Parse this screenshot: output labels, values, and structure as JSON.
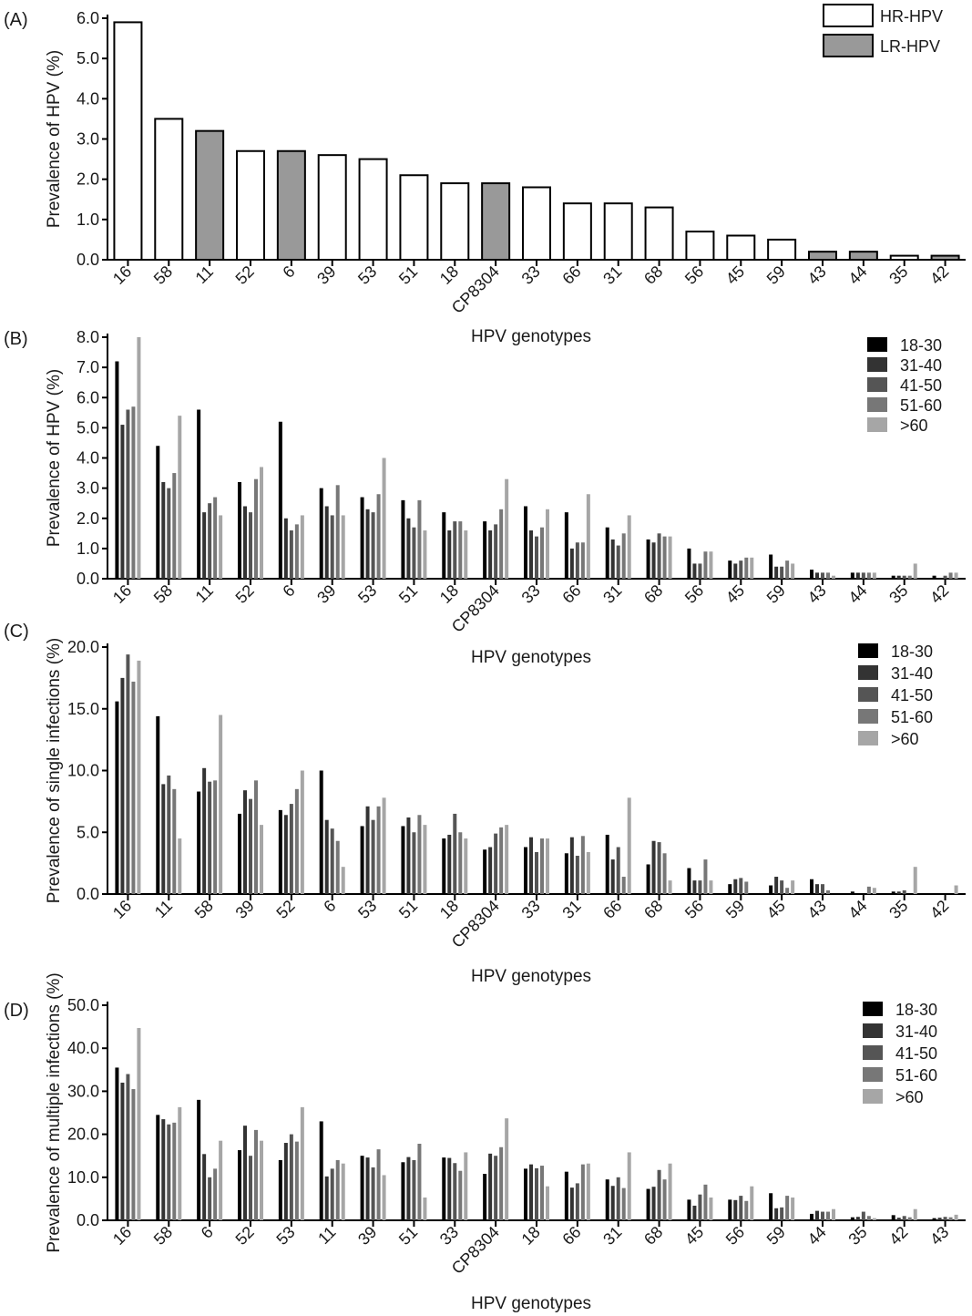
{
  "chart_data": [
    {
      "panel": "(A)",
      "type": "bar",
      "ylabel": "Prevalence of HPV (%)",
      "xlabel": "HPV genotypes",
      "ylim": [
        0,
        6
      ],
      "yticks": [
        "0.0",
        "1.0",
        "2.0",
        "3.0",
        "4.0",
        "5.0",
        "6.0"
      ],
      "categories": [
        "16",
        "58",
        "11",
        "52",
        "6",
        "39",
        "53",
        "51",
        "18",
        "CP8304",
        "33",
        "66",
        "31",
        "68",
        "56",
        "45",
        "59",
        "43",
        "44",
        "35",
        "42"
      ],
      "values": [
        5.9,
        3.5,
        3.2,
        2.7,
        2.7,
        2.6,
        2.5,
        2.1,
        1.9,
        1.9,
        1.8,
        1.4,
        1.4,
        1.3,
        0.7,
        0.6,
        0.5,
        0.2,
        0.2,
        0.1,
        0.1
      ],
      "risk": [
        "HR",
        "HR",
        "LR",
        "HR",
        "LR",
        "HR",
        "HR",
        "HR",
        "HR",
        "LR",
        "HR",
        "HR",
        "HR",
        "HR",
        "HR",
        "HR",
        "HR",
        "LR",
        "LR",
        "HR",
        "LR"
      ],
      "legend": [
        {
          "name": "HR-HPV",
          "color": "#ffffff"
        },
        {
          "name": "LR-HPV",
          "color": "#999999"
        }
      ]
    },
    {
      "panel": "(B)",
      "type": "bar",
      "ylabel": "Prevalence of HPV  (%)",
      "xlabel": "HPV genotypes",
      "ylim": [
        0,
        8
      ],
      "yticks": [
        "0.0",
        "1.0",
        "2.0",
        "3.0",
        "4.0",
        "5.0",
        "6.0",
        "7.0",
        "8.0"
      ],
      "categories": [
        "16",
        "58",
        "11",
        "52",
        "6",
        "39",
        "53",
        "51",
        "18",
        "CP8304",
        "33",
        "66",
        "31",
        "68",
        "56",
        "45",
        "59",
        "43",
        "44",
        "35",
        "42"
      ],
      "series": [
        {
          "name": "18-30",
          "color": "#000000",
          "values": [
            7.2,
            4.4,
            5.6,
            3.2,
            5.2,
            3.0,
            2.7,
            2.6,
            2.2,
            1.9,
            2.4,
            2.2,
            1.7,
            1.3,
            1.0,
            0.6,
            0.8,
            0.3,
            0.2,
            0.1,
            0.1
          ]
        },
        {
          "name": "31-40",
          "color": "#333333",
          "values": [
            5.1,
            3.2,
            2.2,
            2.4,
            2.0,
            2.4,
            2.3,
            2.0,
            1.6,
            1.6,
            1.6,
            1.0,
            1.3,
            1.2,
            0.5,
            0.5,
            0.4,
            0.2,
            0.2,
            0.1,
            0.0
          ]
        },
        {
          "name": "41-50",
          "color": "#555555",
          "values": [
            5.6,
            3.0,
            2.5,
            2.2,
            1.6,
            2.1,
            2.2,
            1.7,
            1.9,
            1.8,
            1.4,
            1.2,
            1.1,
            1.5,
            0.5,
            0.6,
            0.4,
            0.2,
            0.2,
            0.1,
            0.1
          ]
        },
        {
          "name": "51-60",
          "color": "#777777",
          "values": [
            5.7,
            3.5,
            2.7,
            3.3,
            1.8,
            3.1,
            2.8,
            2.6,
            1.9,
            2.3,
            1.7,
            1.2,
            1.5,
            1.4,
            0.9,
            0.7,
            0.6,
            0.2,
            0.2,
            0.1,
            0.2
          ]
        },
        {
          "name": ">60",
          "color": "#a6a6a6",
          "values": [
            8.0,
            5.4,
            2.1,
            3.7,
            2.1,
            2.1,
            4.0,
            1.6,
            1.6,
            3.3,
            2.3,
            2.8,
            2.1,
            1.4,
            0.9,
            0.7,
            0.5,
            0.1,
            0.2,
            0.5,
            0.2
          ]
        }
      ]
    },
    {
      "panel": "(C)",
      "type": "bar",
      "ylabel": "Prevalence of single infections (%)",
      "xlabel": "HPV genotypes",
      "ylim": [
        0,
        20
      ],
      "yticks": [
        "0.0",
        "5.0",
        "10.0",
        "15.0",
        "20.0"
      ],
      "categories": [
        "16",
        "11",
        "58",
        "39",
        "52",
        "6",
        "53",
        "51",
        "18",
        "CP8304",
        "33",
        "31",
        "66",
        "68",
        "56",
        "59",
        "45",
        "43",
        "44",
        "35",
        "42"
      ],
      "series": [
        {
          "name": "18-30",
          "color": "#000000",
          "values": [
            15.6,
            14.4,
            8.3,
            6.5,
            6.8,
            10.0,
            5.5,
            5.5,
            4.5,
            3.6,
            3.8,
            3.3,
            4.8,
            2.4,
            2.1,
            0.8,
            0.7,
            1.2,
            0.2,
            0.2,
            0.0
          ]
        },
        {
          "name": "31-40",
          "color": "#333333",
          "values": [
            17.5,
            8.9,
            10.2,
            8.4,
            6.4,
            6.0,
            7.1,
            6.2,
            4.8,
            3.8,
            4.6,
            4.6,
            2.8,
            4.3,
            1.1,
            1.2,
            1.4,
            0.8,
            0.0,
            0.2,
            0.0
          ]
        },
        {
          "name": "41-50",
          "color": "#555555",
          "values": [
            19.4,
            9.6,
            9.1,
            7.7,
            7.3,
            5.3,
            6.0,
            5.0,
            6.5,
            4.9,
            3.4,
            3.1,
            3.8,
            4.2,
            1.1,
            1.3,
            1.1,
            0.8,
            0.0,
            0.3,
            0.0
          ]
        },
        {
          "name": "51-60",
          "color": "#777777",
          "values": [
            17.2,
            8.5,
            9.2,
            9.2,
            8.5,
            4.3,
            7.1,
            6.4,
            5.0,
            5.4,
            4.5,
            4.7,
            1.4,
            3.3,
            2.8,
            1.0,
            0.5,
            0.3,
            0.6,
            0.0,
            0.0
          ]
        },
        {
          "name": ">60",
          "color": "#a6a6a6",
          "values": [
            18.9,
            4.5,
            14.5,
            5.6,
            10.0,
            2.2,
            7.8,
            5.6,
            4.5,
            5.6,
            4.5,
            3.4,
            7.8,
            1.1,
            1.1,
            0.0,
            1.1,
            0.0,
            0.5,
            2.2,
            0.7
          ]
        }
      ]
    },
    {
      "panel": "(D)",
      "type": "bar",
      "ylabel": "Prevalence of multiple infections (%)",
      "xlabel": "HPV genotypes",
      "ylim": [
        0,
        50
      ],
      "yticks": [
        "0.0",
        "10.0",
        "20.0",
        "30.0",
        "40.0",
        "50.0"
      ],
      "categories": [
        "16",
        "58",
        "6",
        "52",
        "53",
        "11",
        "39",
        "51",
        "33",
        "CP8304",
        "18",
        "66",
        "31",
        "68",
        "45",
        "56",
        "59",
        "44",
        "35",
        "42",
        "43"
      ],
      "series": [
        {
          "name": "18-30",
          "color": "#000000",
          "values": [
            35.5,
            24.5,
            28.0,
            16.3,
            14.0,
            23.0,
            15.0,
            13.5,
            14.6,
            10.8,
            12.0,
            11.3,
            9.5,
            7.3,
            4.8,
            4.8,
            6.3,
            1.5,
            0.7,
            1.2,
            0.5
          ]
        },
        {
          "name": "31-40",
          "color": "#333333",
          "values": [
            32.0,
            23.5,
            15.4,
            22.0,
            18.0,
            10.2,
            14.6,
            14.7,
            14.5,
            15.5,
            13.0,
            7.6,
            8.0,
            7.8,
            3.4,
            4.7,
            2.8,
            2.2,
            0.8,
            0.6,
            0.6
          ]
        },
        {
          "name": "41-50",
          "color": "#555555",
          "values": [
            34.0,
            22.3,
            10.0,
            15.0,
            20.0,
            12.0,
            12.3,
            14.0,
            13.3,
            15.0,
            12.1,
            8.6,
            10.0,
            11.7,
            6.0,
            5.7,
            3.0,
            2.0,
            2.0,
            1.0,
            0.8
          ]
        },
        {
          "name": "51-60",
          "color": "#777777",
          "values": [
            30.5,
            22.7,
            12.0,
            21.0,
            18.3,
            14.0,
            16.5,
            17.8,
            11.5,
            17.0,
            12.7,
            13.0,
            7.5,
            9.5,
            8.3,
            4.5,
            5.7,
            2.0,
            1.0,
            0.7,
            0.7
          ]
        },
        {
          "name": ">60",
          "color": "#a6a6a6",
          "values": [
            44.7,
            26.3,
            18.5,
            18.5,
            26.3,
            13.2,
            10.5,
            5.3,
            15.8,
            23.7,
            7.9,
            13.2,
            15.8,
            13.2,
            5.3,
            7.9,
            5.3,
            2.6,
            0.5,
            2.6,
            1.3
          ]
        }
      ]
    }
  ]
}
